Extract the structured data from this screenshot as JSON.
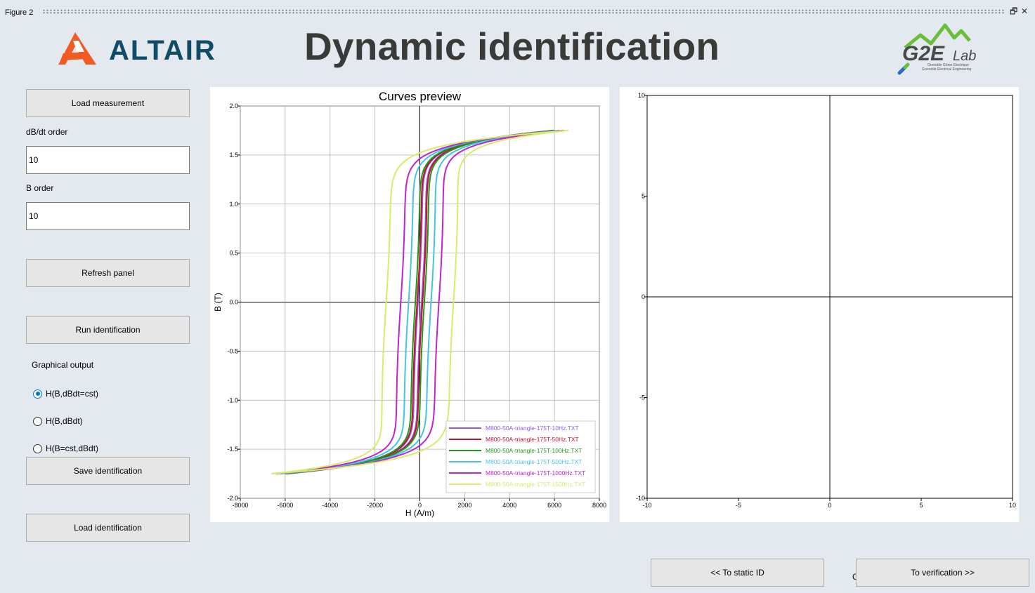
{
  "window": {
    "title": "Figure 2",
    "restore_icon": "restore-icon",
    "close_icon": "close-icon",
    "restore_glyph": "🗗",
    "close_glyph": "✕"
  },
  "header": {
    "title": "Dynamic identification",
    "altair_logo": "ALTAIR",
    "g2e_logo_text": "G2E",
    "g2e_lab": "Lab",
    "g2e_tag1": "Grenoble Génie Electrique",
    "g2e_tag2": "Grenoble Electrical Engineering"
  },
  "sidebar": {
    "load_measurement": "Load measurement",
    "dbdt_label": "dB/dt order",
    "dbdt_value": "10",
    "b_label": "B order",
    "b_value": "10",
    "refresh": "Refresh panel",
    "run": "Run identification",
    "graphical_output": "Graphical output",
    "options": [
      "H(B,dBdt=cst)",
      "H(B,dBdt)",
      "H(B=cst,dBdt)"
    ],
    "selected": 0,
    "save": "Save identification",
    "load_identification": "Load identification"
  },
  "footer": {
    "to_static": "<< To static ID",
    "to_verification": "To verification >>",
    "stray_char": "C"
  },
  "chart_data": [
    {
      "type": "line",
      "title": "Curves preview",
      "xlabel": "H (A/m)",
      "ylabel": "B (T)",
      "xlim": [
        -8000,
        8000
      ],
      "ylim": [
        -2.0,
        2.0
      ],
      "xticks": [
        -8000,
        -6000,
        -4000,
        -2000,
        0,
        2000,
        4000,
        6000,
        8000
      ],
      "yticks": [
        -2.0,
        -1.5,
        -1.0,
        -0.5,
        0.0,
        0.5,
        1.0,
        1.5,
        2.0
      ],
      "grid": true,
      "legend": "lower-right",
      "series": [
        {
          "name": "M800-50A-triangle-175T-10Hz.TXT",
          "color": "#8a5cf6",
          "hmax": 6200,
          "bmax": 1.75,
          "hc": 80
        },
        {
          "name": "M800-50A-triangle-175T-50Hz.TXT",
          "color": "#c8102e",
          "hmax": 6250,
          "bmax": 1.75,
          "hc": 120
        },
        {
          "name": "M800-50A-triangle-175T-100Hz.TXT",
          "color": "#1a9a1a",
          "hmax": 6300,
          "bmax": 1.75,
          "hc": 200
        },
        {
          "name": "M800-50A-triangle-175T-500Hz.TXT",
          "color": "#45c4e6",
          "hmax": 6500,
          "bmax": 1.75,
          "hc": 500
        },
        {
          "name": "M800-50A-triangle-175T-1000Hz.TXT",
          "color": "#c023c9",
          "hmax": 6700,
          "bmax": 1.75,
          "hc": 850
        },
        {
          "name": "M800-50A-triangle-175T-1500Hz.TXT",
          "color": "#d6ec6a",
          "hmax": 6900,
          "bmax": 1.75,
          "hc": 1500
        }
      ]
    },
    {
      "type": "line",
      "title": "",
      "xlim": [
        -10,
        10
      ],
      "ylim": [
        -10,
        10
      ],
      "xticks": [
        -10,
        -5,
        0,
        5,
        10
      ],
      "yticks": [
        -10,
        -5,
        0,
        5,
        10
      ],
      "grid": false,
      "series": []
    }
  ]
}
